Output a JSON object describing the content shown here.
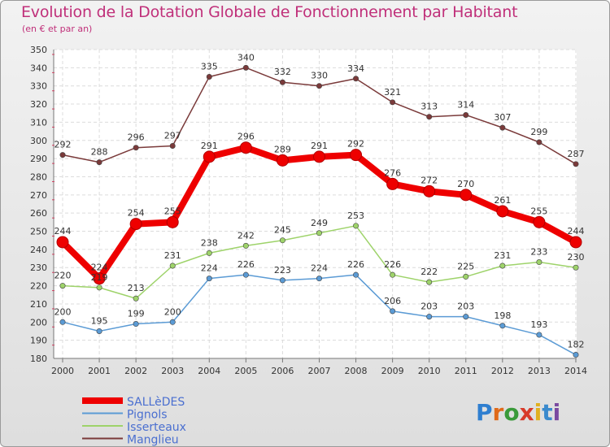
{
  "header": {
    "title": "Evolution de la Dotation Globale de Fonctionnement par Habitant",
    "subtitle": "(en € et par an)"
  },
  "logo": {
    "text": "Proxiti"
  },
  "chart_data": {
    "type": "line",
    "title": "Evolution de la Dotation Globale de Fonctionnement par Habitant",
    "subtitle": "(en € et par an)",
    "xlabel": "",
    "ylabel": "",
    "x": [
      "2000",
      "2001",
      "2002",
      "2003",
      "2004",
      "2005",
      "2006",
      "2007",
      "2008",
      "2009",
      "2010",
      "2011",
      "2012",
      "2013",
      "2014"
    ],
    "ylim": [
      180,
      350
    ],
    "yticks": [
      180,
      190,
      200,
      210,
      220,
      230,
      240,
      250,
      260,
      270,
      280,
      290,
      300,
      310,
      320,
      330,
      340,
      350
    ],
    "grid": true,
    "legend_position": "bottom-left",
    "series": [
      {
        "name": "SALLèDES",
        "color": "#ee0000",
        "values": [
          244,
          224,
          254,
          255,
          291,
          296,
          289,
          291,
          292,
          276,
          272,
          270,
          261,
          255,
          244
        ]
      },
      {
        "name": "Pignols",
        "color": "#5b9bd5",
        "values": [
          200,
          195,
          199,
          200,
          224,
          226,
          223,
          224,
          226,
          206,
          203,
          203,
          198,
          193,
          182
        ]
      },
      {
        "name": "Isserteaux",
        "color": "#9ed36a",
        "values": [
          220,
          219,
          213,
          231,
          238,
          242,
          245,
          249,
          253,
          226,
          222,
          225,
          231,
          233,
          230
        ]
      },
      {
        "name": "Manglieu",
        "color": "#7a3a3a",
        "values": [
          292,
          288,
          296,
          297,
          335,
          340,
          332,
          330,
          334,
          321,
          313,
          314,
          307,
          299,
          287
        ]
      }
    ]
  }
}
